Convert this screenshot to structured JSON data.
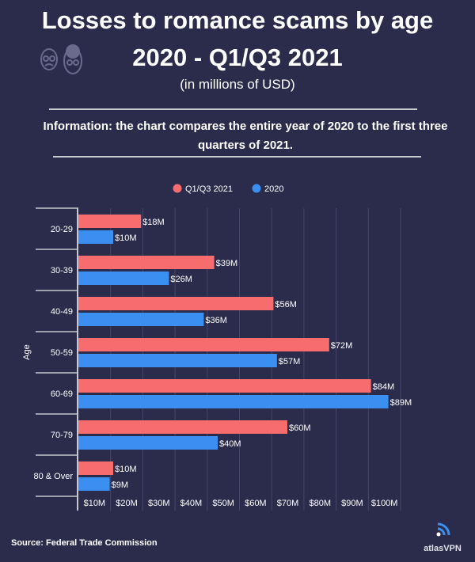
{
  "header": {
    "title_line1": "Losses to romance scams by age",
    "title_line2": "2020 - Q1/Q3 2021",
    "subtitle": "(in millions of USD)",
    "info": "Information: the chart compares the entire year of 2020 to the first three quarters of 2021."
  },
  "footer": {
    "source": "Source: Federal Trade Commission",
    "logo": "atlasVPN"
  },
  "colors": {
    "background": "#2b2c4c",
    "q1q3_2021": "#f76c6c",
    "y2020": "#3b8ff0"
  },
  "chart_data": {
    "type": "bar",
    "orientation": "horizontal",
    "ylabel": "Age",
    "xlabel": "",
    "categories": [
      "20-29",
      "30-39",
      "40-49",
      "50-59",
      "60-69",
      "70-79",
      "80 & Over"
    ],
    "series": [
      {
        "name": "Q1/Q3 2021",
        "values": [
          18,
          39,
          56,
          72,
          84,
          60,
          10
        ],
        "labels": [
          "$18M",
          "$39M",
          "$56M",
          "$72M",
          "$84M",
          "$60M",
          "$10M"
        ]
      },
      {
        "name": "2020",
        "values": [
          10,
          26,
          36,
          57,
          89,
          40,
          9
        ],
        "labels": [
          "$10M",
          "$26M",
          "$36M",
          "$57M",
          "$89M",
          "$40M",
          "$9M"
        ]
      }
    ],
    "x_tick_labels": [
      "$10M",
      "$20M",
      "$30M",
      "$40M",
      "$50M",
      "$60M",
      "$70M",
      "$80M",
      "$90M",
      "$100M"
    ],
    "xlim": [
      0,
      100
    ],
    "grid": true,
    "legend": "top"
  }
}
